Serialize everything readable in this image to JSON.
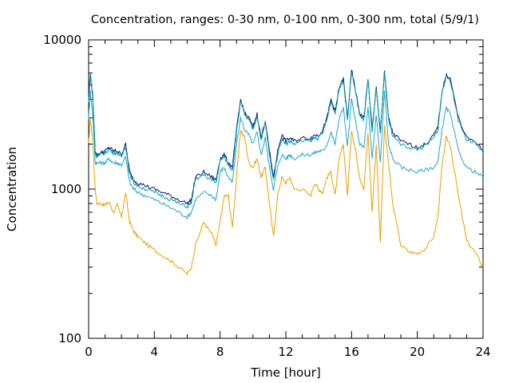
{
  "chart_data": {
    "type": "line",
    "title": "Concentration, ranges: 0-30 nm, 0-100 nm, 0-300 nm, total (5/9/1)",
    "xlabel": "Time [hour]",
    "ylabel": "Concentration",
    "xlim": [
      0,
      24
    ],
    "ylim": [
      100,
      10000
    ],
    "yscale": "log",
    "grid": false,
    "legend": "none",
    "x_ticks": [
      0,
      4,
      8,
      12,
      16,
      20,
      24
    ],
    "x_tick_labels": [
      "0",
      "4",
      "8",
      "12",
      "16",
      "20",
      "24"
    ],
    "y_ticks": [
      100,
      1000,
      10000
    ],
    "y_tick_labels": [
      "100",
      "1000",
      "10000"
    ],
    "x": [
      0,
      0.1,
      0.25,
      0.4,
      0.5,
      0.75,
      1,
      1.25,
      1.5,
      1.75,
      2,
      2.25,
      2.5,
      2.75,
      3,
      3.5,
      4,
      4.5,
      5,
      5.5,
      6,
      6.25,
      6.5,
      7,
      7.5,
      7.75,
      8,
      8.25,
      8.5,
      8.75,
      9,
      9.25,
      9.5,
      9.75,
      10,
      10.25,
      10.5,
      10.75,
      11,
      11.25,
      11.5,
      11.75,
      12,
      12.25,
      12.5,
      13,
      13.5,
      13.75,
      14,
      14.25,
      14.5,
      14.75,
      15,
      15.25,
      15.5,
      15.75,
      16,
      16.25,
      16.5,
      16.75,
      17,
      17.25,
      17.5,
      17.75,
      18,
      18.25,
      18.5,
      19,
      19.5,
      20,
      20.5,
      21,
      21.25,
      21.5,
      21.75,
      22,
      22.5,
      23,
      23.5,
      24
    ],
    "series": [
      {
        "color": "#e6a000",
        "values": [
          2000,
          3000,
          2100,
          1000,
          800,
          800,
          780,
          820,
          700,
          780,
          650,
          950,
          600,
          520,
          480,
          430,
          390,
          360,
          330,
          300,
          270,
          300,
          420,
          600,
          500,
          420,
          600,
          900,
          900,
          550,
          1200,
          2500,
          2200,
          1500,
          1400,
          1600,
          1200,
          1400,
          800,
          480,
          900,
          1200,
          1100,
          1200,
          1000,
          1000,
          900,
          1100,
          1000,
          950,
          1200,
          1300,
          900,
          1600,
          2000,
          900,
          2500,
          1800,
          1200,
          1000,
          2400,
          700,
          2000,
          450,
          2600,
          1500,
          800,
          420,
          380,
          370,
          400,
          480,
          650,
          1400,
          2200,
          2000,
          900,
          450,
          380,
          300
        ]
      },
      {
        "color": "#22a4cc",
        "values": [
          3000,
          4500,
          3200,
          1500,
          1500,
          1500,
          1500,
          1600,
          1500,
          1500,
          1450,
          1650,
          1100,
          1000,
          950,
          900,
          850,
          800,
          750,
          700,
          650,
          700,
          850,
          950,
          900,
          850,
          1300,
          1400,
          1200,
          1100,
          2000,
          3000,
          2500,
          2300,
          2000,
          2400,
          1700,
          2200,
          1400,
          1000,
          1400,
          1700,
          1600,
          1700,
          1600,
          1700,
          1700,
          1750,
          1800,
          1800,
          2000,
          2400,
          2000,
          3000,
          3500,
          1900,
          4000,
          2800,
          2000,
          1900,
          3500,
          1600,
          3200,
          1500,
          4500,
          2000,
          1600,
          1400,
          1350,
          1300,
          1350,
          1400,
          1500,
          2500,
          3500,
          3200,
          1800,
          1400,
          1300,
          1200
        ]
      },
      {
        "color": "#101080",
        "values": [
          4000,
          6000,
          4200,
          1800,
          1700,
          1750,
          1800,
          1900,
          1800,
          1800,
          1700,
          2000,
          1300,
          1150,
          1100,
          1050,
          1000,
          950,
          900,
          850,
          800,
          850,
          1200,
          1300,
          1200,
          1150,
          1600,
          1700,
          1500,
          1400,
          2500,
          4000,
          3200,
          3000,
          2600,
          3200,
          2200,
          2900,
          1800,
          1200,
          1800,
          2300,
          2100,
          2200,
          2100,
          2200,
          2200,
          2300,
          2300,
          2500,
          3000,
          4000,
          3300,
          4800,
          5500,
          3000,
          6300,
          4500,
          3200,
          3000,
          5500,
          2500,
          4800,
          2400,
          6200,
          3000,
          2400,
          2100,
          2000,
          1900,
          2000,
          2300,
          2600,
          4500,
          5800,
          5500,
          3000,
          2200,
          2100,
          1800
        ]
      },
      {
        "color": "#00a0a0",
        "values": [
          3800,
          5800,
          4100,
          1750,
          1650,
          1700,
          1750,
          1850,
          1750,
          1750,
          1650,
          1950,
          1250,
          1100,
          1050,
          1000,
          950,
          900,
          850,
          800,
          760,
          810,
          1150,
          1250,
          1150,
          1100,
          1550,
          1650,
          1450,
          1350,
          2400,
          3900,
          3100,
          2900,
          2500,
          3100,
          2100,
          2800,
          1700,
          1150,
          1700,
          2200,
          2000,
          2100,
          2000,
          2100,
          2100,
          2200,
          2200,
          2400,
          2900,
          3900,
          3200,
          4700,
          5400,
          2900,
          6200,
          4400,
          3100,
          2900,
          5400,
          2400,
          4700,
          2300,
          6100,
          2900,
          2300,
          2000,
          1900,
          1850,
          1950,
          2200,
          2500,
          4400,
          5700,
          5400,
          2900,
          2150,
          2050,
          1750
        ]
      }
    ]
  }
}
